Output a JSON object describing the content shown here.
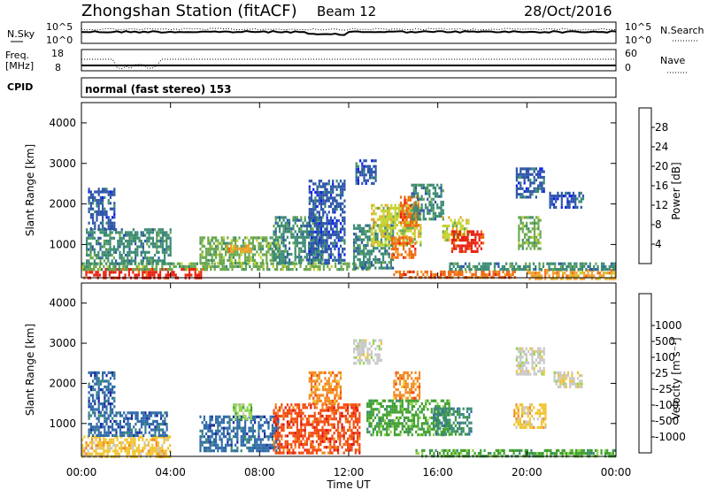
{
  "header": {
    "title": "Zhongshan Station (fitACF)",
    "beam": "Beam 12",
    "date": "28/Oct/2016"
  },
  "top_panels": {
    "nsky_label": "N.Sky",
    "nsky_ticks": [
      "10^5",
      "10^0"
    ],
    "nsearch_label": "N.Search",
    "nsearch_ticks": [
      "10^5",
      "10^0"
    ],
    "freq_label_1": "Freq.",
    "freq_label_2": "[MHz]",
    "freq_ticks": [
      "18",
      "8"
    ],
    "nave_label": "Nave",
    "nave_ticks": [
      "60",
      "0"
    ],
    "cpid_label": "CPID",
    "cpid_text": "normal (fast stereo) 153"
  },
  "colors": {
    "power": [
      "#0a1cf0",
      "#2c55a8",
      "#3b8a73",
      "#6aa84f",
      "#c4d22e",
      "#f0a02a",
      "#f06a12",
      "#e82010"
    ],
    "velocity": [
      "#e01010",
      "#f24a10",
      "#f28a22",
      "#f2c430",
      "#c8c8c8",
      "#8fd34a",
      "#40a030",
      "#3b8a73",
      "#2f6aa8",
      "#1a2a9c"
    ]
  },
  "chart_data": [
    {
      "type": "heatmap",
      "name": "power",
      "ylabel": "Slant Range [km]",
      "xlabel": "",
      "x_ticks": [
        "00:00",
        "04:00",
        "08:00",
        "12:00",
        "16:00",
        "20:00",
        "00:00"
      ],
      "y_ticks": [
        "1000",
        "2000",
        "3000",
        "4000"
      ],
      "ylim": [
        180,
        4500
      ],
      "colorbar_label": "Power [dB]",
      "colorbar_ticks": [
        "4",
        "8",
        "12",
        "16",
        "20",
        "24",
        "28"
      ],
      "patches": [
        {
          "t0": 0.0,
          "t1": 5.6,
          "r0": 180,
          "r1": 420,
          "c": 7
        },
        {
          "t0": 0.0,
          "t1": 13.0,
          "r0": 420,
          "r1": 560,
          "c": 3
        },
        {
          "t0": 0.2,
          "t1": 4.0,
          "r0": 560,
          "r1": 1400,
          "c": 2
        },
        {
          "t0": 0.3,
          "t1": 1.5,
          "r0": 1400,
          "r1": 2400,
          "c": 1
        },
        {
          "t0": 5.3,
          "t1": 8.8,
          "r0": 560,
          "r1": 1200,
          "c": 3
        },
        {
          "t0": 6.5,
          "t1": 7.6,
          "r0": 800,
          "r1": 1000,
          "c": 5
        },
        {
          "t0": 8.6,
          "t1": 10.8,
          "r0": 560,
          "r1": 1700,
          "c": 2
        },
        {
          "t0": 10.2,
          "t1": 11.8,
          "r0": 560,
          "r1": 2600,
          "c": 1
        },
        {
          "t0": 12.2,
          "t1": 14.0,
          "r0": 400,
          "r1": 1500,
          "c": 2
        },
        {
          "t0": 13.0,
          "t1": 15.2,
          "r0": 1000,
          "r1": 2000,
          "c": 4
        },
        {
          "t0": 13.9,
          "t1": 15.0,
          "r0": 700,
          "r1": 1200,
          "c": 6
        },
        {
          "t0": 14.3,
          "t1": 15.1,
          "r0": 1500,
          "r1": 2200,
          "c": 6
        },
        {
          "t0": 12.3,
          "t1": 13.2,
          "r0": 2500,
          "r1": 3100,
          "c": 1
        },
        {
          "t0": 14.8,
          "t1": 16.2,
          "r0": 1600,
          "r1": 2500,
          "c": 2
        },
        {
          "t0": 16.2,
          "t1": 17.4,
          "r0": 1100,
          "r1": 1700,
          "c": 4
        },
        {
          "t0": 16.6,
          "t1": 18.0,
          "r0": 850,
          "r1": 1350,
          "c": 7
        },
        {
          "t0": 14.0,
          "t1": 19.5,
          "r0": 180,
          "r1": 360,
          "c": 6
        },
        {
          "t0": 19.6,
          "t1": 20.6,
          "r0": 900,
          "r1": 1700,
          "c": 3
        },
        {
          "t0": 19.5,
          "t1": 20.8,
          "r0": 2200,
          "r1": 2900,
          "c": 1
        },
        {
          "t0": 21.0,
          "t1": 22.5,
          "r0": 1900,
          "r1": 2300,
          "c": 1
        },
        {
          "t0": 20.0,
          "t1": 24.0,
          "r0": 180,
          "r1": 400,
          "c": 5
        },
        {
          "t0": 16.5,
          "t1": 24.0,
          "r0": 400,
          "r1": 560,
          "c": 2
        }
      ]
    },
    {
      "type": "heatmap",
      "name": "velocity",
      "ylabel": "Slant Range [km]",
      "xlabel": "Time UT",
      "x_ticks": [
        "00:00",
        "04:00",
        "08:00",
        "12:00",
        "16:00",
        "20:00",
        "00:00"
      ],
      "y_ticks": [
        "1000",
        "2000",
        "3000",
        "4000"
      ],
      "ylim": [
        180,
        4500
      ],
      "colorbar_label": "Velocity [m s⁻¹]",
      "colorbar_ticks": [
        "-1000",
        "-500",
        "-100",
        "-25",
        "25",
        "100",
        "500",
        "1000"
      ],
      "patches": [
        {
          "t0": 0.0,
          "t1": 4.0,
          "r0": 180,
          "r1": 700,
          "c": 3
        },
        {
          "t0": 0.3,
          "t1": 3.8,
          "r0": 700,
          "r1": 1300,
          "c": 8
        },
        {
          "t0": 0.3,
          "t1": 1.5,
          "r0": 1300,
          "r1": 2300,
          "c": 8
        },
        {
          "t0": 5.3,
          "t1": 8.8,
          "r0": 300,
          "r1": 1200,
          "c": 8
        },
        {
          "t0": 6.8,
          "t1": 7.6,
          "r0": 1100,
          "r1": 1500,
          "c": 5
        },
        {
          "t0": 8.6,
          "t1": 12.5,
          "r0": 250,
          "r1": 1500,
          "c": 1
        },
        {
          "t0": 10.2,
          "t1": 11.6,
          "r0": 1500,
          "r1": 2300,
          "c": 2
        },
        {
          "t0": 12.2,
          "t1": 13.5,
          "r0": 2500,
          "r1": 3100,
          "c": 4
        },
        {
          "t0": 12.8,
          "t1": 16.5,
          "r0": 700,
          "r1": 1600,
          "c": 6
        },
        {
          "t0": 14.0,
          "t1": 15.2,
          "r0": 1600,
          "r1": 2300,
          "c": 2
        },
        {
          "t0": 15.8,
          "t1": 17.5,
          "r0": 700,
          "r1": 1400,
          "c": 7
        },
        {
          "t0": 19.4,
          "t1": 20.8,
          "r0": 900,
          "r1": 1500,
          "c": 3
        },
        {
          "t0": 19.5,
          "t1": 20.8,
          "r0": 2200,
          "r1": 2900,
          "c": 4
        },
        {
          "t0": 21.2,
          "t1": 22.5,
          "r0": 1900,
          "r1": 2300,
          "c": 4
        },
        {
          "t0": 15.0,
          "t1": 24.0,
          "r0": 180,
          "r1": 360,
          "c": 6
        }
      ]
    }
  ]
}
